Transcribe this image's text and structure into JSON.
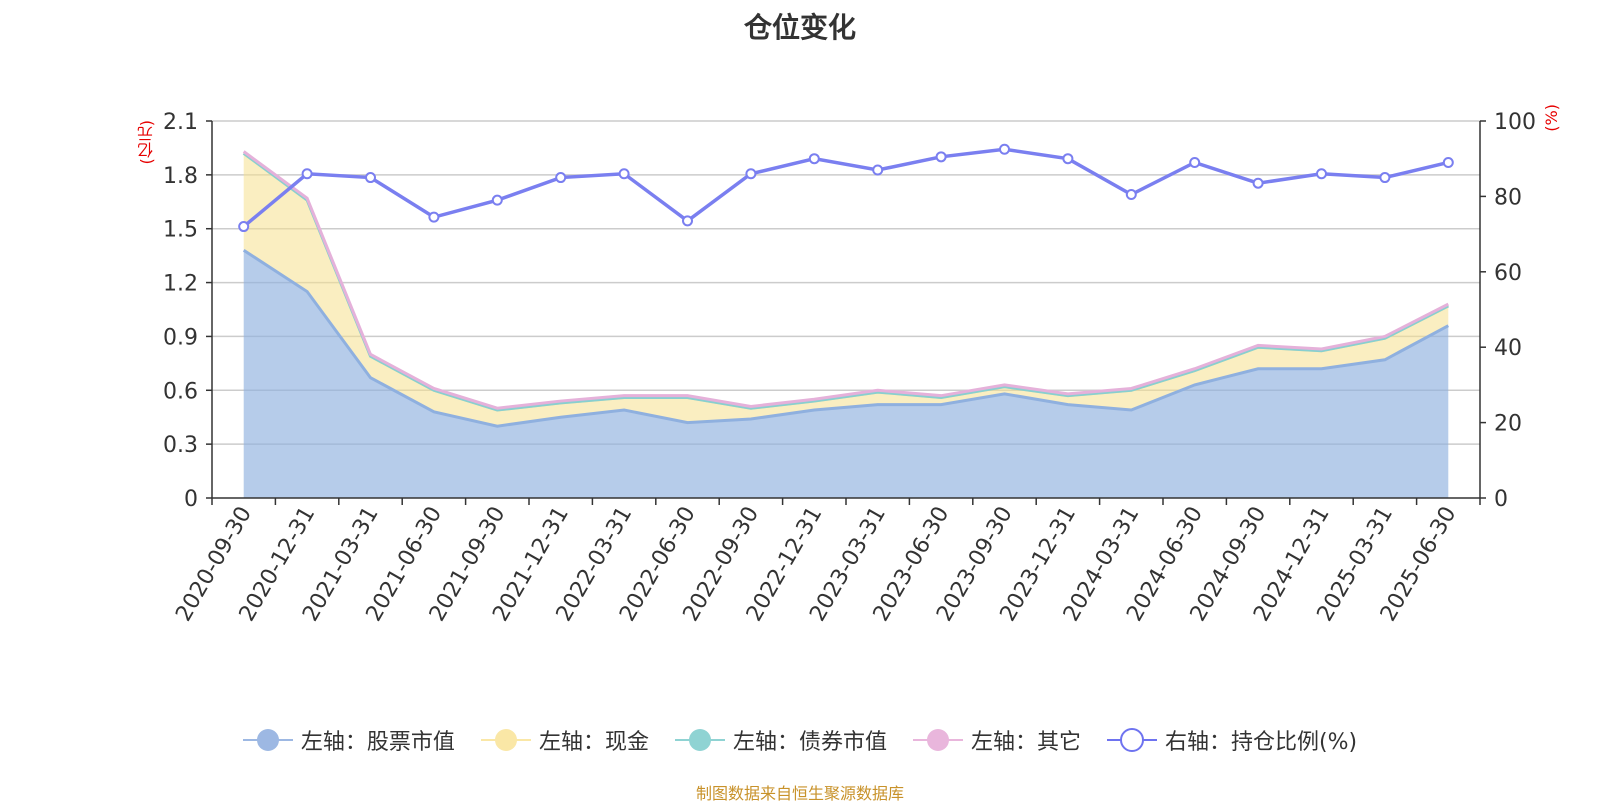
{
  "title": "仓位变化",
  "left_unit": "(亿元)",
  "right_unit": "(%)",
  "source": "制图数据来自恒生聚源数据库",
  "colors": {
    "stock": "#8fb0df",
    "cash": "#f5e08e",
    "bond": "#88cfd0",
    "other": "#e5b1da",
    "ratio": "#7a7ff0"
  },
  "legend": [
    {
      "label": "左轴：股票市值",
      "marker": "filled-circle",
      "color": "#9db8e3"
    },
    {
      "label": "左轴：现金",
      "marker": "filled-circle",
      "color": "#fae7a6"
    },
    {
      "label": "左轴：债券市值",
      "marker": "filled-circle",
      "color": "#8fd3d3"
    },
    {
      "label": "左轴：其它",
      "marker": "filled-circle",
      "color": "#e9b6dc"
    },
    {
      "label": "右轴：持仓比例(%)",
      "marker": "hollow-circle",
      "color": "#6e73f0"
    }
  ],
  "chart_data": {
    "type": "area",
    "title": "仓位变化",
    "categories": [
      "2020-09-30",
      "2020-12-31",
      "2021-03-31",
      "2021-06-30",
      "2021-09-30",
      "2021-12-31",
      "2022-03-31",
      "2022-06-30",
      "2022-09-30",
      "2022-12-31",
      "2023-03-31",
      "2023-06-30",
      "2023-09-30",
      "2023-12-31",
      "2024-03-31",
      "2024-06-30",
      "2024-09-30",
      "2024-12-31",
      "2025-03-31",
      "2025-06-30"
    ],
    "y_left": {
      "label": "(亿元)",
      "min": 0,
      "max": 2.1,
      "ticks": [
        "0",
        "0.3",
        "0.6",
        "0.9",
        "1.2",
        "1.5",
        "1.8",
        "2.1"
      ]
    },
    "y_right": {
      "label": "(%)",
      "min": 0,
      "max": 100,
      "ticks": [
        "0",
        "20",
        "40",
        "60",
        "80",
        "100"
      ]
    },
    "grid": true,
    "legend_position": "bottom",
    "series": [
      {
        "name": "左轴：股票市值",
        "axis": "left",
        "values": [
          1.38,
          1.15,
          0.67,
          0.48,
          0.4,
          0.45,
          0.49,
          0.42,
          0.44,
          0.49,
          0.52,
          0.52,
          0.58,
          0.52,
          0.49,
          0.63,
          0.72,
          0.72,
          0.77,
          0.96
        ]
      },
      {
        "name": "左轴：现金",
        "axis": "left",
        "values": [
          0.54,
          0.51,
          0.12,
          0.12,
          0.09,
          0.08,
          0.07,
          0.14,
          0.06,
          0.05,
          0.07,
          0.04,
          0.04,
          0.05,
          0.11,
          0.08,
          0.12,
          0.1,
          0.12,
          0.11
        ]
      },
      {
        "name": "左轴：债券市值",
        "axis": "left",
        "values": [
          0,
          0,
          0,
          0,
          0,
          0,
          0,
          0,
          0,
          0,
          0,
          0,
          0,
          0,
          0,
          0,
          0,
          0,
          0,
          0
        ]
      },
      {
        "name": "左轴：其它",
        "axis": "left",
        "values": [
          0.01,
          0.01,
          0.01,
          0.01,
          0.01,
          0.01,
          0.01,
          0.01,
          0.01,
          0.01,
          0.01,
          0.01,
          0.01,
          0.01,
          0.01,
          0.01,
          0.01,
          0.01,
          0.01,
          0.01
        ]
      },
      {
        "name": "右轴：持仓比例(%)",
        "axis": "right",
        "values": [
          72,
          86,
          85,
          74.5,
          79,
          85,
          86,
          73.5,
          86,
          90,
          87,
          90.5,
          92.5,
          90,
          80.5,
          89,
          83.5,
          86,
          85,
          89
        ]
      }
    ]
  }
}
